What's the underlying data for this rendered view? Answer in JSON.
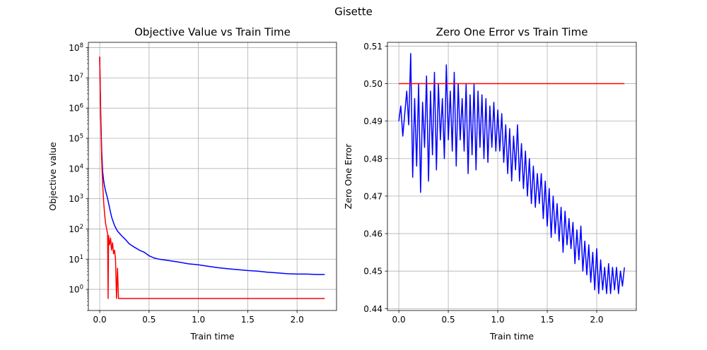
{
  "figure": {
    "suptitle": "Gisette"
  },
  "chart_data": [
    {
      "type": "line",
      "title": "Objective Value vs Train Time",
      "xlabel": "Train time",
      "ylabel": "Objective value",
      "yscale": "log",
      "xlim": [
        -0.115,
        2.4
      ],
      "ylim": [
        0.2,
        150000000
      ],
      "xticks": [
        0.0,
        0.5,
        1.0,
        1.5,
        2.0
      ],
      "xtick_labels": [
        "0.0",
        "0.5",
        "1.0",
        "1.5",
        "2.0"
      ],
      "yticks": [
        1,
        10,
        100,
        1000,
        10000,
        100000,
        1000000,
        10000000,
        100000000
      ],
      "ytick_labels": [
        "10^0",
        "10^1",
        "10^2",
        "10^3",
        "10^4",
        "10^5",
        "10^6",
        "10^7",
        "10^8"
      ],
      "grid": true,
      "series": [
        {
          "color": "#0000ff",
          "x": [
            0.0,
            0.01,
            0.02,
            0.03,
            0.04,
            0.05,
            0.06,
            0.08,
            0.1,
            0.12,
            0.15,
            0.18,
            0.22,
            0.26,
            0.3,
            0.35,
            0.4,
            0.45,
            0.5,
            0.55,
            0.6,
            0.7,
            0.8,
            0.9,
            1.0,
            1.1,
            1.2,
            1.3,
            1.4,
            1.5,
            1.6,
            1.7,
            1.8,
            1.9,
            2.0,
            2.1,
            2.2,
            2.28
          ],
          "y": [
            50000000,
            800000,
            40000,
            8000,
            4000,
            2500,
            1800,
            1000,
            500,
            250,
            130,
            85,
            60,
            45,
            32,
            25,
            20,
            17,
            13,
            11,
            10,
            9,
            8,
            7,
            6.5,
            5.8,
            5.2,
            4.8,
            4.5,
            4.2,
            4.0,
            3.7,
            3.5,
            3.3,
            3.2,
            3.2,
            3.1,
            3.1
          ]
        },
        {
          "color": "#ff0000",
          "x": [
            0.0,
            0.01,
            0.02,
            0.03,
            0.04,
            0.05,
            0.06,
            0.07,
            0.08,
            0.085,
            0.09,
            0.095,
            0.1,
            0.11,
            0.12,
            0.13,
            0.14,
            0.15,
            0.16,
            0.17,
            0.18,
            0.19,
            0.2,
            0.25,
            0.5,
            1.0,
            1.5,
            2.0,
            2.28
          ],
          "y": [
            50000000,
            500000,
            20000,
            3000,
            800,
            300,
            150,
            100,
            70,
            0.5,
            60,
            40,
            30,
            50,
            20,
            35,
            15,
            20,
            10,
            0.5,
            5,
            0.5,
            0.5,
            0.5,
            0.5,
            0.5,
            0.5,
            0.5,
            0.5
          ]
        }
      ]
    },
    {
      "type": "line",
      "title": "Zero One Error vs Train Time",
      "xlabel": "Train time",
      "ylabel": "Zero One Error",
      "xlim": [
        -0.115,
        2.4
      ],
      "ylim": [
        0.4395,
        0.511
      ],
      "xticks": [
        0.0,
        0.5,
        1.0,
        1.5,
        2.0
      ],
      "xtick_labels": [
        "0.0",
        "0.5",
        "1.0",
        "1.5",
        "2.0"
      ],
      "yticks": [
        0.44,
        0.45,
        0.46,
        0.47,
        0.48,
        0.49,
        0.5,
        0.51
      ],
      "ytick_labels": [
        "0.44",
        "0.45",
        "0.46",
        "0.47",
        "0.48",
        "0.49",
        "0.50",
        "0.51"
      ],
      "grid": true,
      "series": [
        {
          "color": "#0000ff",
          "x": [
            0.0,
            0.02,
            0.04,
            0.06,
            0.08,
            0.1,
            0.12,
            0.14,
            0.16,
            0.18,
            0.2,
            0.22,
            0.24,
            0.26,
            0.28,
            0.3,
            0.32,
            0.34,
            0.36,
            0.38,
            0.4,
            0.42,
            0.44,
            0.46,
            0.48,
            0.5,
            0.52,
            0.54,
            0.56,
            0.58,
            0.6,
            0.62,
            0.64,
            0.66,
            0.68,
            0.7,
            0.72,
            0.74,
            0.76,
            0.78,
            0.8,
            0.82,
            0.84,
            0.86,
            0.88,
            0.9,
            0.92,
            0.94,
            0.96,
            0.98,
            1.0,
            1.02,
            1.04,
            1.06,
            1.08,
            1.1,
            1.12,
            1.14,
            1.16,
            1.18,
            1.2,
            1.22,
            1.24,
            1.26,
            1.28,
            1.3,
            1.32,
            1.34,
            1.36,
            1.38,
            1.4,
            1.42,
            1.44,
            1.46,
            1.48,
            1.5,
            1.52,
            1.54,
            1.56,
            1.58,
            1.6,
            1.62,
            1.64,
            1.66,
            1.68,
            1.7,
            1.72,
            1.74,
            1.76,
            1.78,
            1.8,
            1.82,
            1.84,
            1.86,
            1.88,
            1.9,
            1.92,
            1.94,
            1.96,
            1.98,
            2.0,
            2.02,
            2.04,
            2.06,
            2.08,
            2.1,
            2.12,
            2.14,
            2.16,
            2.18,
            2.2,
            2.22,
            2.24,
            2.26,
            2.28
          ],
          "y": [
            0.49,
            0.494,
            0.486,
            0.492,
            0.498,
            0.489,
            0.508,
            0.475,
            0.496,
            0.478,
            0.5,
            0.471,
            0.495,
            0.483,
            0.502,
            0.474,
            0.498,
            0.481,
            0.503,
            0.477,
            0.5,
            0.485,
            0.496,
            0.48,
            0.505,
            0.485,
            0.498,
            0.482,
            0.503,
            0.478,
            0.5,
            0.485,
            0.496,
            0.482,
            0.5,
            0.476,
            0.497,
            0.481,
            0.5,
            0.477,
            0.498,
            0.483,
            0.497,
            0.48,
            0.496,
            0.479,
            0.494,
            0.483,
            0.495,
            0.482,
            0.493,
            0.482,
            0.492,
            0.479,
            0.489,
            0.476,
            0.488,
            0.474,
            0.486,
            0.477,
            0.489,
            0.474,
            0.484,
            0.472,
            0.482,
            0.47,
            0.48,
            0.468,
            0.478,
            0.467,
            0.476,
            0.468,
            0.476,
            0.464,
            0.474,
            0.462,
            0.472,
            0.459,
            0.47,
            0.46,
            0.468,
            0.458,
            0.467,
            0.455,
            0.466,
            0.457,
            0.464,
            0.456,
            0.463,
            0.452,
            0.461,
            0.453,
            0.462,
            0.45,
            0.458,
            0.449,
            0.457,
            0.447,
            0.455,
            0.445,
            0.456,
            0.444,
            0.453,
            0.445,
            0.451,
            0.444,
            0.452,
            0.444,
            0.451,
            0.445,
            0.451,
            0.444,
            0.45,
            0.446,
            0.451
          ]
        },
        {
          "color": "#ff0000",
          "x": [
            0.0,
            2.28
          ],
          "y": [
            0.5,
            0.5
          ]
        }
      ]
    }
  ]
}
